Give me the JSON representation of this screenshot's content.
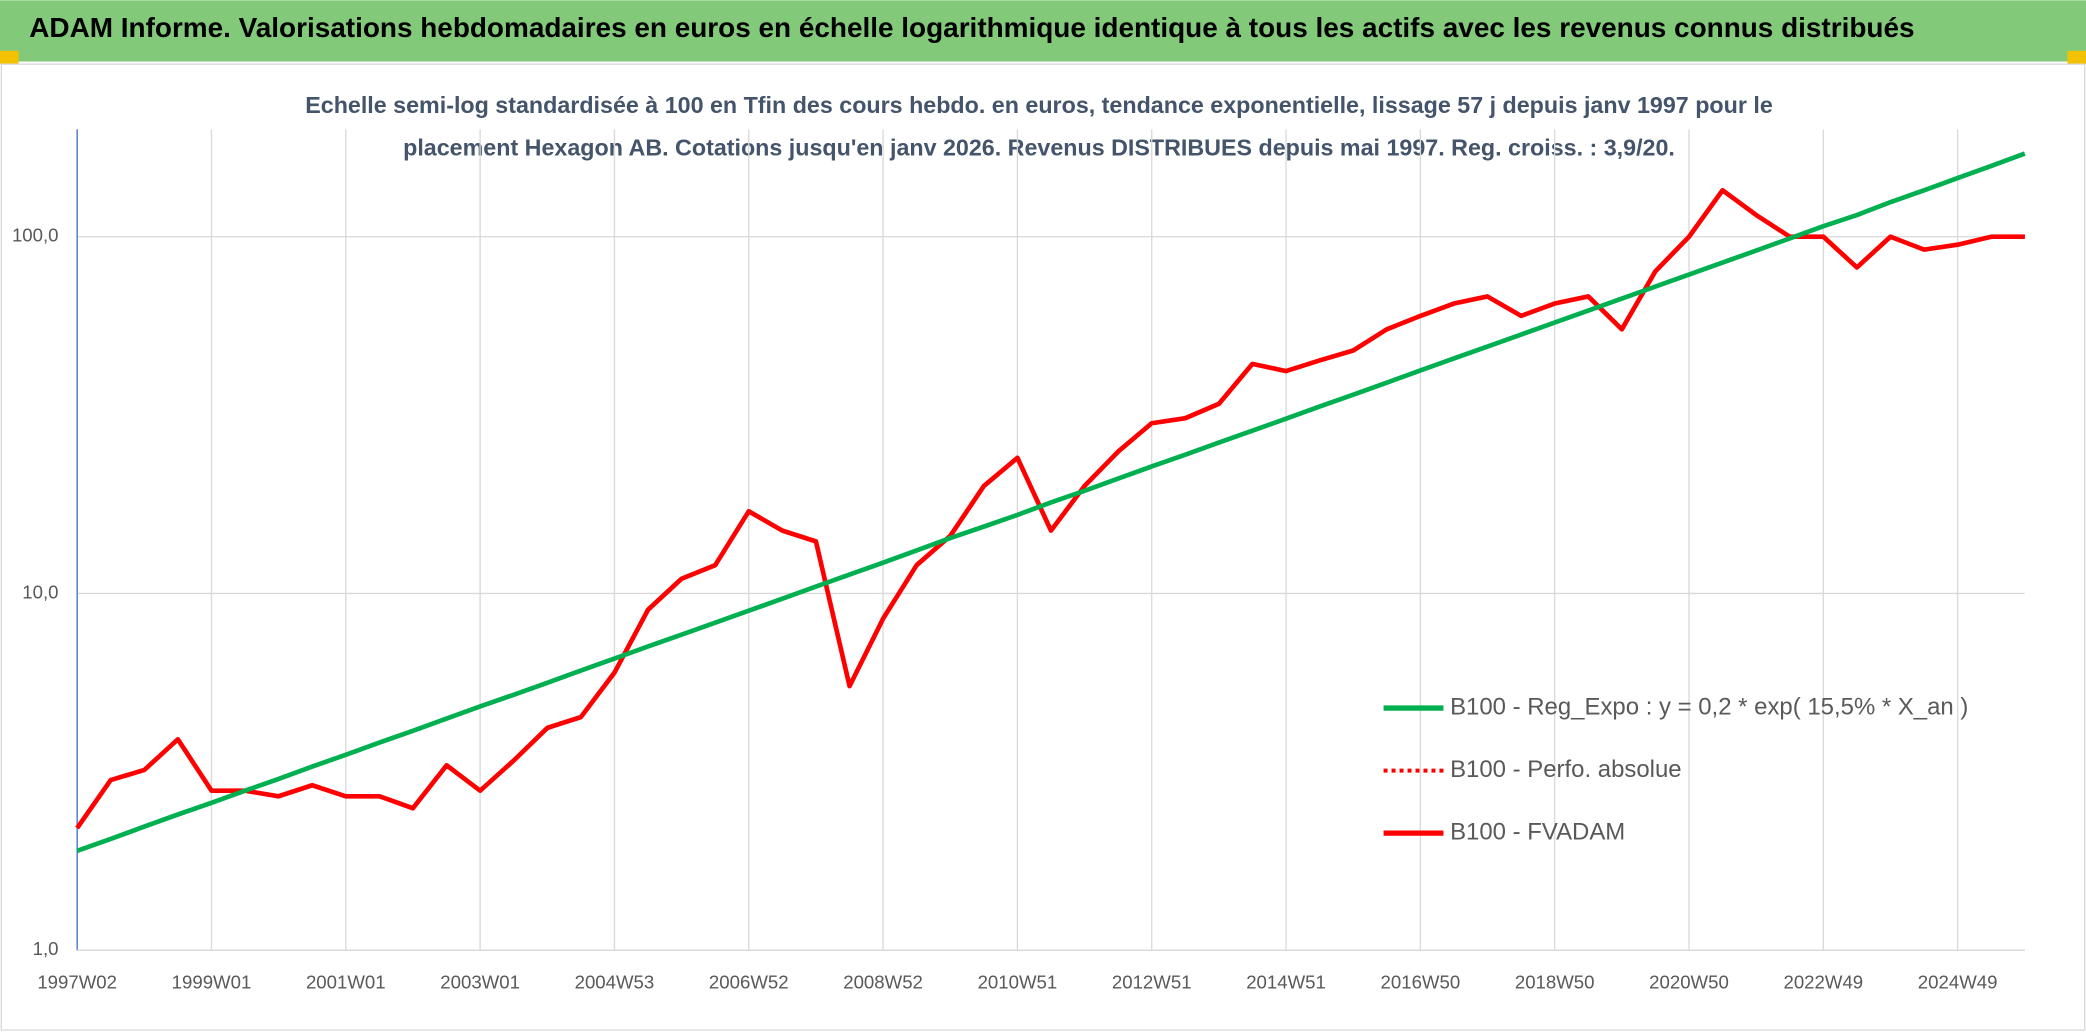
{
  "chart_data": {
    "type": "line",
    "title": "ADAM Informe. Valorisations hebdomadaires en euros en échelle logarithmique identique à tous les actifs avec les revenus connus distribués",
    "subtitle": [
      "Echelle semi-log standardisée à 100 en Tfin des cours hebdo. en euros, tendance exponentielle, lissage 57 j depuis janv 1997 pour le",
      "placement Hexagon AB. Cotations jusqu'en janv 2026. Revenus DISTRIBUES depuis mai 1997. Reg. croiss. : 3,9/20."
    ],
    "categories": [
      "1997W02",
      null,
      null,
      null,
      "1999W01",
      null,
      null,
      null,
      "2001W01",
      null,
      null,
      null,
      "2003W01",
      null,
      null,
      null,
      "2004W53",
      null,
      null,
      null,
      "2006W52",
      null,
      null,
      null,
      "2008W52",
      null,
      null,
      null,
      "2010W51",
      null,
      null,
      null,
      "2012W51",
      null,
      null,
      null,
      "2014W51",
      null,
      null,
      null,
      "2016W50",
      null,
      null,
      null,
      "2018W50",
      null,
      null,
      null,
      "2020W50",
      null,
      null,
      null,
      "2022W49",
      null,
      null,
      null,
      "2024W49",
      null,
      null
    ],
    "series": [
      {
        "name": "B100 - Reg_Expo : y = 0,2 * exp( 15,5% *  X_an )",
        "color": "#00b050",
        "style": "solid",
        "values": [
          1.9,
          2.05,
          2.22,
          2.4,
          2.59,
          2.8,
          3.02,
          3.27,
          3.53,
          3.82,
          4.12,
          4.46,
          4.82,
          5.2,
          5.62,
          6.08,
          6.57,
          7.1,
          7.67,
          8.28,
          8.95,
          9.67,
          10.45,
          11.3,
          12.2,
          13.2,
          14.3,
          15.4,
          16.6,
          18,
          19.4,
          21,
          22.7,
          24.5,
          26.5,
          28.6,
          30.9,
          33.4,
          36.1,
          39,
          42.2,
          45.6,
          49.2,
          53.2,
          57.5,
          62.1,
          67.1,
          72.5,
          78.4,
          84.7,
          91.5,
          98.9,
          107,
          115,
          125,
          135,
          146,
          158,
          171
        ]
      },
      {
        "name": "B100 - Perfo. absolue",
        "color": "#ff0000",
        "style": "dotted",
        "values": [
          2.2,
          3,
          3.2,
          3.9,
          2.8,
          2.8,
          2.7,
          2.9,
          2.7,
          2.7,
          2.5,
          3.3,
          2.8,
          3.4,
          4.2,
          4.5,
          6,
          9,
          11,
          12,
          17,
          15,
          14,
          5.5,
          8.5,
          12,
          14.5,
          20,
          24,
          15,
          20,
          25,
          30,
          31,
          34,
          44,
          42,
          45,
          48,
          55,
          60,
          65,
          68,
          60,
          65,
          68,
          55,
          80,
          100,
          135,
          115,
          100,
          100,
          82,
          100,
          92,
          95,
          100,
          100
        ]
      },
      {
        "name": "B100 - FVADAM",
        "color": "#ff0000",
        "style": "solid",
        "values": [
          2.2,
          3,
          3.2,
          3.9,
          2.8,
          2.8,
          2.7,
          2.9,
          2.7,
          2.7,
          2.5,
          3.3,
          2.8,
          3.4,
          4.2,
          4.5,
          6,
          9,
          11,
          12,
          17,
          15,
          14,
          5.5,
          8.5,
          12,
          14.5,
          20,
          24,
          15,
          20,
          25,
          30,
          31,
          34,
          44,
          42,
          45,
          48,
          55,
          60,
          65,
          68,
          60,
          65,
          68,
          55,
          80,
          100,
          135,
          115,
          100,
          100,
          82,
          100,
          92,
          95,
          100,
          100
        ]
      }
    ],
    "ylim": [
      1,
      200
    ],
    "yticks": [
      {
        "value": 1,
        "label": "1,0"
      },
      {
        "value": 10,
        "label": "10,0"
      },
      {
        "value": 100,
        "label": "100,0"
      }
    ],
    "log_scale": true,
    "grid": true
  }
}
